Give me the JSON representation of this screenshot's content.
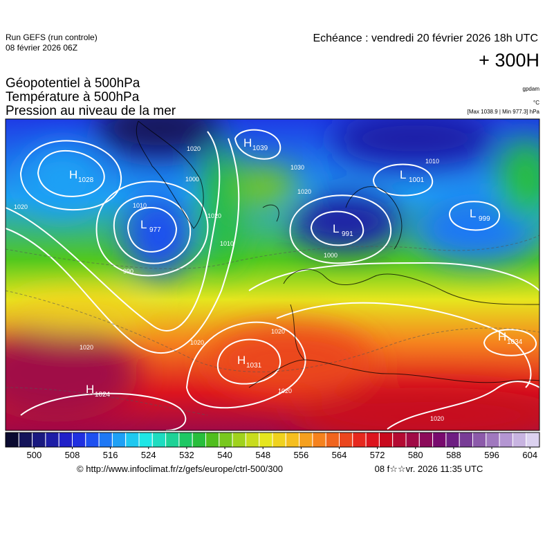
{
  "header": {
    "run": "Run GEFS (run controle)",
    "run_date": "08 février 2026 06Z",
    "valid": "Echéance : vendredi 20 février 2026 18h UTC",
    "lead": "+ 300H",
    "fields": [
      "Géopotentiel à 500hPa",
      "Température à 500hPa",
      "Pression au niveau de la mer"
    ],
    "units": [
      "gpdam",
      "°C",
      "[Max 1038.9 | Min 977.3] hPa"
    ]
  },
  "centers": [
    {
      "letter": "H",
      "value": 1028
    },
    {
      "letter": "H",
      "value": 1039
    },
    {
      "letter": "L",
      "value": 977
    },
    {
      "letter": "L",
      "value": 1001
    },
    {
      "letter": "L",
      "value": 999
    },
    {
      "letter": "L",
      "value": 991
    },
    {
      "letter": "H",
      "value": 1031
    },
    {
      "letter": "H",
      "value": 1034
    },
    {
      "letter": "H",
      "value": 1024
    }
  ],
  "contour_labels": [
    1020,
    1020,
    1010,
    1000,
    990,
    1020,
    1010,
    1030,
    1020,
    1000,
    1010,
    1020,
    1020,
    1020,
    1020,
    1020
  ],
  "colorbar": {
    "range": [
      494,
      606
    ],
    "ticks": [
      500,
      508,
      516,
      524,
      532,
      540,
      548,
      556,
      564,
      572,
      580,
      588,
      596,
      604
    ],
    "colors": [
      "#0a0a30",
      "#14145a",
      "#1a1a80",
      "#1e1ea6",
      "#2020c8",
      "#2030e0",
      "#1e50f0",
      "#1e78f5",
      "#1ea0f5",
      "#1ec8f0",
      "#1ee6e6",
      "#1edcc0",
      "#1ed296",
      "#1ec864",
      "#28be3c",
      "#50be1e",
      "#78c81e",
      "#a0d21e",
      "#c8dc1e",
      "#e6e61e",
      "#f0d21e",
      "#f5be1e",
      "#f5a01e",
      "#f5821e",
      "#f0641e",
      "#eb461e",
      "#e6281e",
      "#dc141e",
      "#c80a1e",
      "#b40a32",
      "#a00a46",
      "#8c0a5a",
      "#780a6e",
      "#6e1e82",
      "#783c96",
      "#8c5aaa",
      "#a078be",
      "#b496d2",
      "#c8b4e1",
      "#dcd2f0"
    ]
  },
  "footer": {
    "url": "© http://www.infoclimat.fr/z/gefs/europe/ctrl-500/300",
    "generated": "08 f☆☆vr. 2026 11:35 UTC"
  }
}
